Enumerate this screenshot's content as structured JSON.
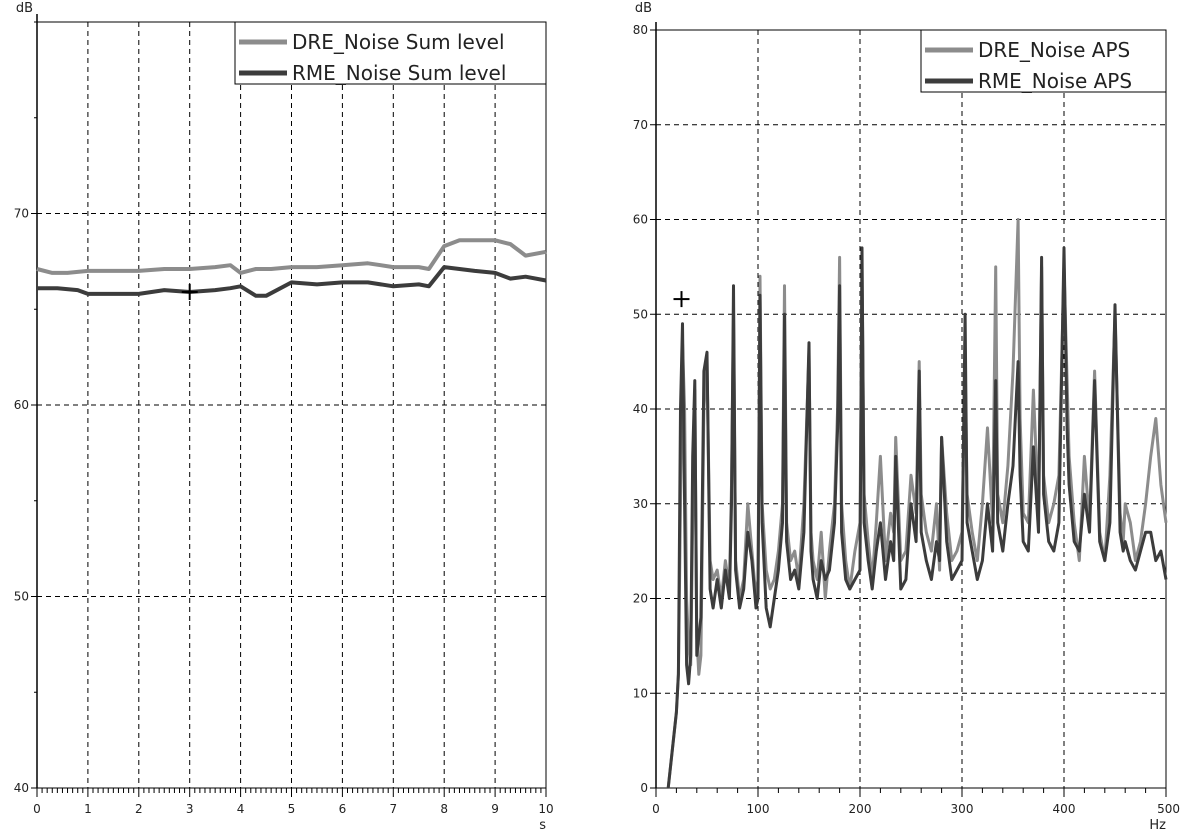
{
  "colors": {
    "dre": "#8c8c8c",
    "rme": "#3c3c3c",
    "grid": "#000000",
    "axis": "#000000"
  },
  "chart_data": [
    {
      "type": "line",
      "ylabel": "dB",
      "xlabel": "s",
      "xlim": [
        0,
        10
      ],
      "ylim": [
        40,
        80
      ],
      "xticks": [
        "0",
        "1",
        "2",
        "3",
        "4",
        "5",
        "6",
        "7",
        "8",
        "9",
        "10"
      ],
      "yticks": [
        "40",
        "50",
        "60",
        "70"
      ],
      "ytick_values": [
        40,
        50,
        60,
        70
      ],
      "grid": true,
      "legend_position": "top-right",
      "cursor": {
        "x": 3.0,
        "y": 65.9
      },
      "series": [
        {
          "name": "DRE_Noise  Sum level",
          "color_key": "dre",
          "x": [
            0,
            0.3,
            0.6,
            1,
            1.5,
            2,
            2.5,
            3,
            3.5,
            3.8,
            4,
            4.3,
            4.6,
            5,
            5.5,
            6,
            6.5,
            7,
            7.5,
            7.7,
            8,
            8.3,
            8.6,
            9,
            9.3,
            9.6,
            10
          ],
          "y": [
            67.1,
            66.9,
            66.9,
            67.0,
            67.0,
            67.0,
            67.1,
            67.1,
            67.2,
            67.3,
            66.9,
            67.1,
            67.1,
            67.2,
            67.2,
            67.3,
            67.4,
            67.2,
            67.2,
            67.1,
            68.3,
            68.6,
            68.6,
            68.6,
            68.4,
            67.8,
            68.0
          ]
        },
        {
          "name": "RME_Noise  Sum level",
          "color_key": "rme",
          "x": [
            0,
            0.4,
            0.8,
            1,
            1.5,
            2,
            2.5,
            3,
            3.5,
            3.8,
            4,
            4.3,
            4.5,
            5,
            5.5,
            6,
            6.5,
            7,
            7.5,
            7.7,
            8,
            8.3,
            8.6,
            9,
            9.3,
            9.6,
            10
          ],
          "y": [
            66.1,
            66.1,
            66.0,
            65.8,
            65.8,
            65.8,
            66.0,
            65.9,
            66.0,
            66.1,
            66.2,
            65.7,
            65.7,
            66.4,
            66.3,
            66.4,
            66.4,
            66.2,
            66.3,
            66.2,
            67.2,
            67.1,
            67.0,
            66.9,
            66.6,
            66.7,
            66.5
          ]
        }
      ]
    },
    {
      "type": "line",
      "ylabel": "dB",
      "xlabel": "Hz",
      "xlim": [
        0,
        500
      ],
      "ylim": [
        0,
        80
      ],
      "xticks": [
        "0",
        "100",
        "200",
        "300",
        "400",
        "500"
      ],
      "yticks": [
        "0",
        "10",
        "20",
        "30",
        "40",
        "50",
        "60",
        "70",
        "80"
      ],
      "ytick_values": [
        0,
        10,
        20,
        30,
        40,
        50,
        60,
        70,
        80
      ],
      "grid": true,
      "legend_position": "top-right",
      "cursor": {
        "x": 25,
        "y": 51.6
      },
      "series": [
        {
          "name": "DRE_Noise  APS",
          "color_key": "dre",
          "x": [
            12,
            16,
            20,
            22,
            24,
            26,
            28,
            30,
            32,
            34,
            36,
            38,
            40,
            42,
            44,
            47,
            50,
            53,
            56,
            60,
            64,
            68,
            72,
            74,
            76,
            78,
            82,
            86,
            90,
            94,
            98,
            100,
            102,
            104,
            108,
            112,
            116,
            120,
            124,
            126,
            128,
            132,
            136,
            140,
            145,
            150,
            152,
            154,
            158,
            162,
            166,
            170,
            175,
            178,
            180,
            182,
            186,
            190,
            195,
            200,
            202,
            204,
            208,
            212,
            216,
            220,
            225,
            230,
            233,
            235,
            240,
            245,
            250,
            255,
            258,
            260,
            265,
            270,
            275,
            278,
            280,
            285,
            290,
            295,
            300,
            303,
            305,
            310,
            315,
            320,
            325,
            330,
            333,
            335,
            340,
            345,
            350,
            355,
            357,
            360,
            365,
            370,
            375,
            378,
            380,
            385,
            390,
            395,
            400,
            403,
            405,
            410,
            415,
            420,
            425,
            430,
            435,
            440,
            445,
            450,
            455,
            458,
            460,
            465,
            470,
            475,
            480,
            485,
            490,
            495,
            500
          ],
          "y": [
            0,
            4,
            8,
            12,
            30,
            47,
            40,
            20,
            15,
            13,
            28,
            42,
            16,
            12,
            14,
            40,
            45,
            24,
            22,
            23,
            20,
            24,
            21,
            32,
            50,
            24,
            20,
            22,
            30,
            25,
            20,
            22,
            54,
            30,
            23,
            21,
            22,
            25,
            30,
            53,
            28,
            24,
            25,
            22,
            30,
            46,
            27,
            24,
            22,
            27,
            20,
            25,
            30,
            40,
            56,
            30,
            24,
            21,
            25,
            28,
            55,
            31,
            26,
            22,
            28,
            35,
            24,
            29,
            27,
            37,
            24,
            25,
            33,
            29,
            45,
            31,
            27,
            25,
            30,
            23,
            37,
            29,
            24,
            25,
            27,
            45,
            31,
            27,
            24,
            30,
            38,
            28,
            55,
            31,
            28,
            34,
            44,
            60,
            39,
            29,
            28,
            42,
            29,
            55,
            33,
            28,
            30,
            33,
            55,
            43,
            35,
            28,
            24,
            35,
            28,
            44,
            27,
            24,
            33,
            50,
            29,
            26,
            30,
            28,
            24,
            26,
            30,
            35,
            39,
            32,
            28
          ]
        },
        {
          "name": "RME_Noise  APS",
          "color_key": "rme",
          "x": [
            12,
            16,
            20,
            22,
            24,
            26,
            28,
            30,
            32,
            34,
            36,
            38,
            40,
            42,
            44,
            47,
            50,
            53,
            56,
            60,
            64,
            68,
            72,
            74,
            76,
            78,
            82,
            86,
            90,
            94,
            98,
            100,
            102,
            104,
            108,
            112,
            116,
            120,
            124,
            126,
            128,
            132,
            136,
            140,
            145,
            150,
            152,
            154,
            158,
            162,
            166,
            170,
            175,
            178,
            180,
            182,
            186,
            190,
            195,
            200,
            202,
            204,
            208,
            212,
            216,
            220,
            225,
            230,
            233,
            235,
            240,
            245,
            250,
            255,
            258,
            260,
            265,
            270,
            275,
            278,
            280,
            285,
            290,
            295,
            300,
            303,
            305,
            310,
            315,
            320,
            325,
            330,
            333,
            335,
            340,
            345,
            350,
            355,
            357,
            360,
            365,
            370,
            375,
            378,
            380,
            385,
            390,
            395,
            400,
            403,
            405,
            410,
            415,
            420,
            425,
            430,
            435,
            440,
            445,
            450,
            455,
            458,
            460,
            465,
            470,
            475,
            480,
            485,
            490,
            495,
            500
          ],
          "y": [
            0,
            4,
            8,
            12,
            40,
            49,
            30,
            13,
            11,
            14,
            35,
            43,
            14,
            16,
            18,
            44,
            46,
            21,
            19,
            22,
            19,
            23,
            20,
            30,
            53,
            23,
            19,
            21,
            27,
            24,
            19,
            20,
            52,
            28,
            19,
            17,
            20,
            23,
            28,
            50,
            26,
            22,
            23,
            21,
            27,
            47,
            25,
            22,
            20,
            24,
            22,
            23,
            28,
            38,
            53,
            27,
            22,
            21,
            22,
            23,
            57,
            28,
            24,
            21,
            25,
            28,
            22,
            26,
            24,
            35,
            21,
            22,
            30,
            26,
            44,
            27,
            24,
            22,
            26,
            24,
            37,
            26,
            22,
            23,
            24,
            50,
            28,
            25,
            22,
            24,
            30,
            25,
            43,
            28,
            25,
            30,
            34,
            45,
            33,
            26,
            25,
            36,
            27,
            56,
            31,
            26,
            25,
            28,
            57,
            38,
            32,
            26,
            25,
            31,
            27,
            43,
            26,
            24,
            28,
            51,
            27,
            25,
            26,
            24,
            23,
            25,
            27,
            27,
            24,
            25,
            22
          ]
        }
      ]
    }
  ]
}
